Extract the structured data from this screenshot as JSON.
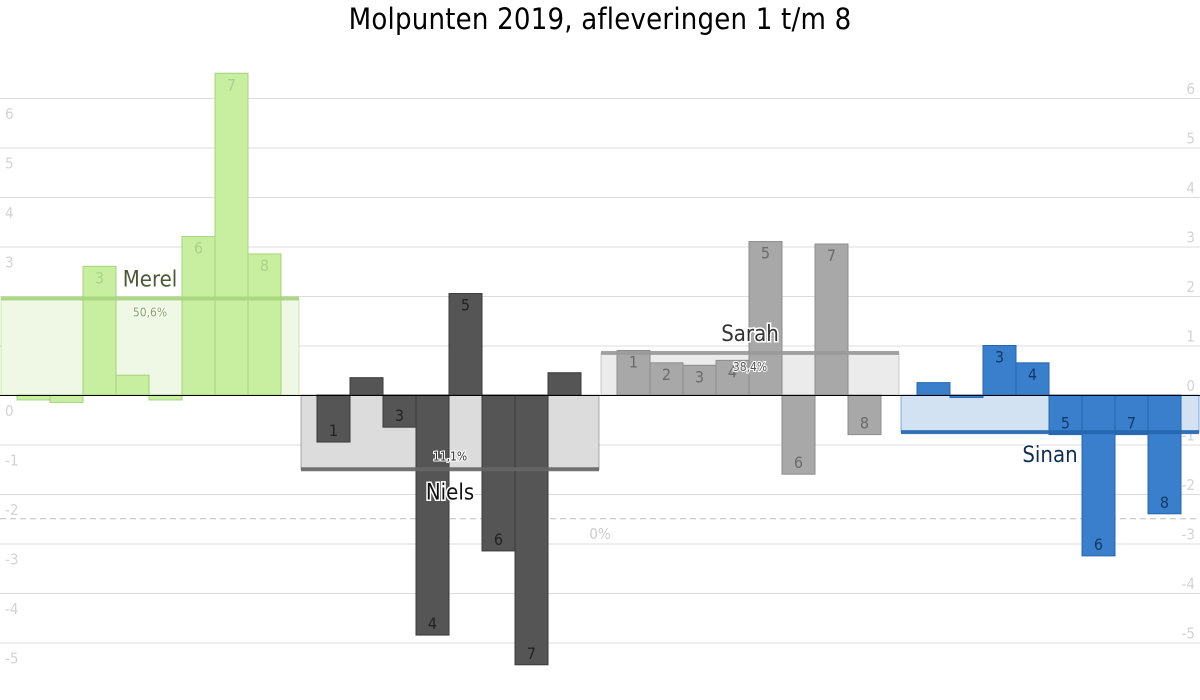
{
  "title": "Molpunten 2019, afleveringen 1 t/m 8",
  "chart_data": {
    "type": "bar",
    "title": "Molpunten 2019, afleveringen 1 t/m 8",
    "ylim": [
      -5.4,
      6.6
    ],
    "yticks": [
      -5,
      -4,
      -3,
      -2,
      -1,
      0,
      1,
      2,
      3,
      4,
      5,
      6
    ],
    "grid": true,
    "episodes": [
      "1",
      "2",
      "3",
      "4",
      "5",
      "6",
      "7",
      "8"
    ],
    "threshold": {
      "value": -2.5,
      "label": "0%"
    },
    "series": [
      {
        "name": "Merel",
        "values": [
          -0.1,
          -0.15,
          2.6,
          0.4,
          -0.1,
          3.2,
          6.5,
          2.85
        ],
        "average": 1.95,
        "percentage": "50,6%",
        "color": "#c8eea0",
        "stroke": "#a6d47c",
        "label_color": "#a9d48a",
        "avg_fill": "#eef8e4",
        "avg_line": "#a6d47c",
        "name_color": "#4a5a34",
        "pct_color": "#7fa85a"
      },
      {
        "name": "Niels",
        "values": [
          -0.95,
          0.35,
          -0.65,
          -4.85,
          2.05,
          -3.15,
          -5.45,
          0.45
        ],
        "average": -1.5,
        "percentage": "11,1%",
        "color": "#555555",
        "stroke": "#3a3a3a",
        "label_color": "#222222",
        "avg_fill": "#dcdcdc",
        "avg_line": "#666666",
        "name_color": "#111111",
        "pct_color": "#333333"
      },
      {
        "name": "Sarah",
        "values": [
          0.9,
          0.65,
          0.6,
          0.7,
          3.1,
          -1.6,
          3.05,
          -0.8
        ],
        "average": 0.85,
        "percentage": "38,4%",
        "color": "#a8a8a8",
        "stroke": "#8c8c8c",
        "label_color": "#6a6a6a",
        "avg_fill": "#ebebeb",
        "avg_line": "#999999",
        "name_color": "#333333",
        "pct_color": "#555555"
      },
      {
        "name": "Sinan",
        "values": [
          0.25,
          -0.05,
          1.0,
          0.65,
          -0.8,
          -3.25,
          -0.8,
          -2.4
        ],
        "average": -0.75,
        "percentage": "",
        "color": "#3a7fcc",
        "stroke": "#2566b0",
        "label_color": "#123a66",
        "avg_fill": "#d3e2f2",
        "avg_line": "#2566b0",
        "name_color": "#0f2d55",
        "pct_color": "#0f2d55"
      }
    ]
  }
}
